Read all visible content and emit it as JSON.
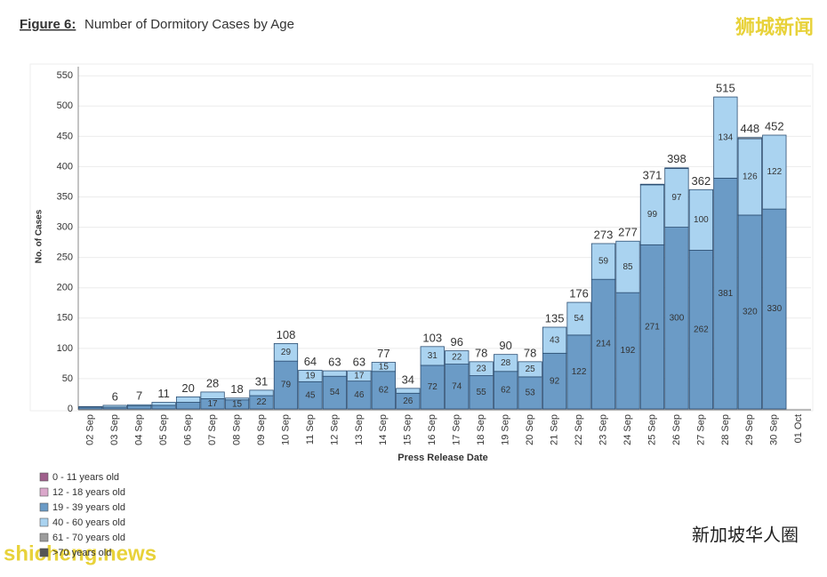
{
  "chart_data": {
    "type": "stacked-bar",
    "title_prefix": "Figure 6:",
    "title": "Number of Dormitory Cases by Age",
    "y_label": "No. of Cases",
    "x_label": "Press Release Date",
    "categories": [
      "02 Sep",
      "03 Sep",
      "04 Sep",
      "05 Sep",
      "06 Sep",
      "07 Sep",
      "08 Sep",
      "09 Sep",
      "10 Sep",
      "11 Sep",
      "12 Sep",
      "13 Sep",
      "14 Sep",
      "15 Sep",
      "16 Sep",
      "17 Sep",
      "18 Sep",
      "19 Sep",
      "20 Sep",
      "21 Sep",
      "22 Sep",
      "23 Sep",
      "24 Sep",
      "25 Sep",
      "26 Sep",
      "27 Sep",
      "28 Sep",
      "29 Sep",
      "30 Sep",
      "01 Oct"
    ],
    "series": [
      {
        "name": "0 - 11 years old",
        "color": "#a0608c",
        "values": [
          0,
          0,
          0,
          0,
          0,
          0,
          0,
          0,
          0,
          0,
          0,
          0,
          0,
          0,
          0,
          0,
          0,
          0,
          0,
          0,
          0,
          0,
          0,
          0,
          0,
          0,
          0,
          0,
          0,
          null
        ]
      },
      {
        "name": "12 - 18 years old",
        "color": "#dba8cb",
        "values": [
          0,
          0,
          0,
          0,
          0,
          0,
          0,
          0,
          0,
          0,
          0,
          0,
          0,
          0,
          0,
          0,
          0,
          0,
          0,
          0,
          0,
          0,
          0,
          0,
          0,
          0,
          0,
          0,
          0,
          null
        ]
      },
      {
        "name": "19 - 39 years old",
        "color": "#6b9bc6",
        "values": [
          3,
          3,
          5,
          6,
          11,
          17,
          15,
          22,
          79,
          45,
          54,
          46,
          62,
          26,
          72,
          74,
          55,
          62,
          53,
          92,
          122,
          214,
          192,
          271,
          300,
          262,
          381,
          320,
          330,
          null
        ]
      },
      {
        "name": "40 - 60 years old",
        "color": "#aad3f0",
        "values": [
          1,
          3,
          2,
          5,
          9,
          11,
          3,
          9,
          29,
          19,
          9,
          17,
          15,
          8,
          31,
          22,
          23,
          28,
          25,
          43,
          54,
          59,
          85,
          99,
          97,
          100,
          134,
          126,
          122,
          null
        ]
      },
      {
        "name": "61 - 70 years old",
        "color": "#9c9c9c",
        "values": [
          0,
          0,
          0,
          0,
          0,
          0,
          0,
          0,
          0,
          0,
          0,
          0,
          0,
          0,
          0,
          0,
          0,
          0,
          0,
          0,
          0,
          0,
          0,
          1,
          1,
          0,
          0,
          2,
          0,
          null
        ]
      },
      {
        "name": ">70 years old",
        "color": "#555555",
        "values": [
          0,
          0,
          0,
          0,
          0,
          0,
          0,
          0,
          0,
          0,
          0,
          0,
          0,
          0,
          0,
          0,
          0,
          0,
          0,
          0,
          0,
          0,
          0,
          0,
          0,
          0,
          0,
          0,
          0,
          null
        ]
      }
    ],
    "totals": [
      null,
      6,
      7,
      11,
      20,
      28,
      18,
      31,
      108,
      64,
      63,
      63,
      77,
      34,
      103,
      96,
      78,
      90,
      78,
      135,
      176,
      273,
      277,
      371,
      398,
      362,
      515,
      448,
      452,
      null
    ],
    "ylim": [
      0,
      565
    ],
    "yticks": [
      0,
      50,
      100,
      150,
      200,
      250,
      300,
      350,
      400,
      450,
      500,
      550
    ],
    "grid": true,
    "watermarks": [
      "狮城新闻",
      "新加坡华人圈",
      "shicheng.news"
    ]
  }
}
